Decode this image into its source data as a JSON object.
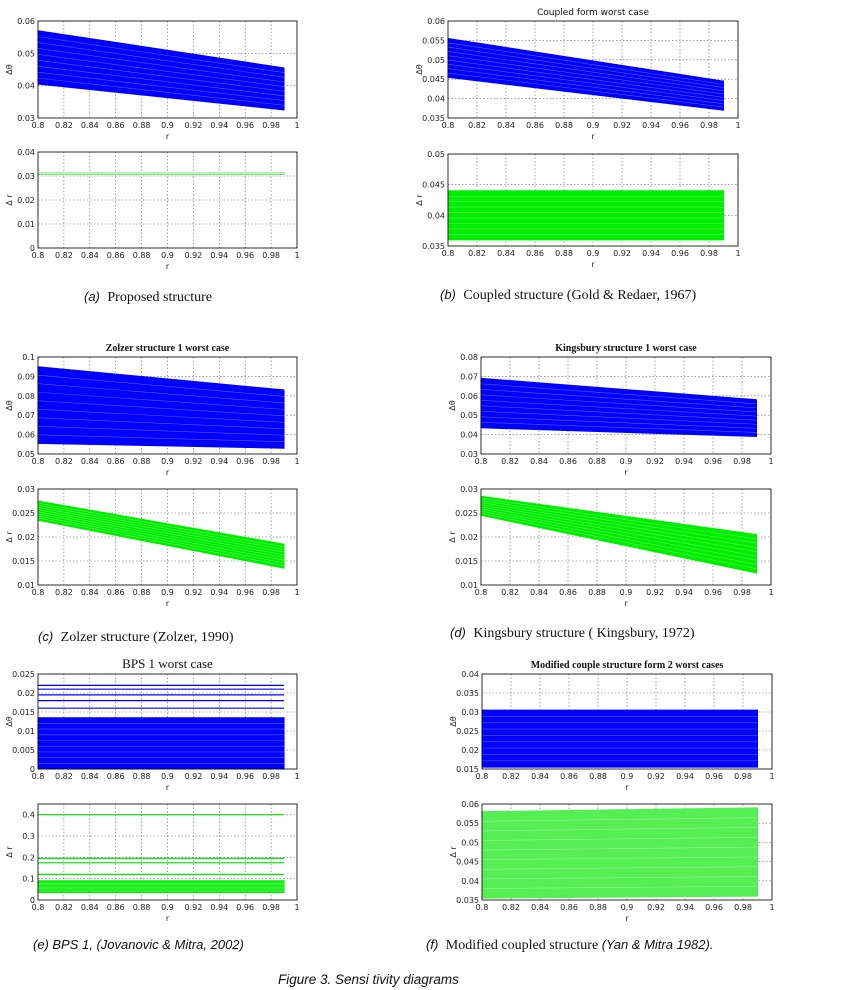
{
  "figure_caption": "Figure 3. Sensi tivity diagrams",
  "captions": {
    "a": {
      "tag": "(a)",
      "text": "Proposed structure"
    },
    "b": {
      "tag": "(b)",
      "text": "Coupled structure (Gold & Redaer, 1967)"
    },
    "c": {
      "tag": "(c)",
      "text": "Zolzer structure (Zolzer, 1990)"
    },
    "d": {
      "tag": "(d)",
      "text": "Kingsbury structure ( Kingsbury, 1972)"
    },
    "e": {
      "tag": "(e)",
      "text": "BPS 1, (Jovanovic & Mitra, 2002)"
    },
    "f": {
      "tag": "(f)",
      "text": "Modified coupled structure",
      "cite": "(Yan & Mitra 1982)."
    }
  },
  "chart_data": [
    {
      "id": "a-top",
      "type": "area",
      "title": "",
      "xlabel": "r",
      "ylabel": "Δθ",
      "xlim": [
        0.8,
        1
      ],
      "ylim": [
        0.03,
        0.06
      ],
      "xticks": [
        "0.8",
        "0.82",
        "0.84",
        "0.86",
        "0.88",
        "0.9",
        "0.92",
        "0.94",
        "0.96",
        "0.98",
        "1"
      ],
      "yticks": [
        "0.03",
        "0.04",
        "0.05",
        "0.06"
      ],
      "x_range": [
        0.8,
        0.99
      ],
      "upper": [
        0.057,
        0.0455
      ],
      "lower": [
        0.0405,
        0.0325
      ],
      "color": "#0000ff"
    },
    {
      "id": "a-bottom",
      "type": "line",
      "title": "",
      "xlabel": "r",
      "ylabel": "Δ r",
      "xlim": [
        0.8,
        1
      ],
      "ylim": [
        0,
        0.04
      ],
      "xticks": [
        "0.8",
        "0.82",
        "0.84",
        "0.86",
        "0.88",
        "0.9",
        "0.92",
        "0.94",
        "0.96",
        "0.98",
        "1"
      ],
      "yticks": [
        "0",
        "0.01",
        "0.02",
        "0.03",
        "0.04"
      ],
      "x_range": [
        0.8,
        0.99
      ],
      "upper": [
        0.0312,
        0.0312
      ],
      "lower": [
        0.0308,
        0.0308
      ],
      "color": "#00cc00"
    },
    {
      "id": "b-top",
      "type": "area",
      "title": "Coupled form worst case",
      "xlabel": "r",
      "ylabel": "Δθ",
      "xlim": [
        0.8,
        1
      ],
      "ylim": [
        0.035,
        0.06
      ],
      "xticks": [
        "0.8",
        "0.82",
        "0.84",
        "0.86",
        "0.88",
        "0.9",
        "0.92",
        "0.94",
        "0.96",
        "0.98",
        "1"
      ],
      "yticks": [
        "0.035",
        "0.04",
        "0.045",
        "0.05",
        "0.055",
        "0.06"
      ],
      "x_range": [
        0.8,
        0.99
      ],
      "upper": [
        0.0555,
        0.0445
      ],
      "lower": [
        0.0455,
        0.037
      ],
      "color": "#0000ff"
    },
    {
      "id": "b-bottom",
      "type": "area",
      "title": "",
      "xlabel": "r",
      "ylabel": "Δ r",
      "xlim": [
        0.8,
        1
      ],
      "ylim": [
        0.035,
        0.05
      ],
      "xticks": [
        "0.8",
        "0.82",
        "0.84",
        "0.86",
        "0.88",
        "0.9",
        "0.92",
        "0.94",
        "0.96",
        "0.98",
        "1"
      ],
      "yticks": [
        "0.035",
        "0.04",
        "0.045",
        "0.05"
      ],
      "x_range": [
        0.8,
        0.99
      ],
      "upper": [
        0.044,
        0.044
      ],
      "lower": [
        0.036,
        0.036
      ],
      "color": "#00ee00"
    },
    {
      "id": "c-top",
      "type": "area",
      "title": "Zolzer structure 1 worst case",
      "xlabel": "r",
      "ylabel": "Δθ",
      "xlim": [
        0.8,
        1
      ],
      "ylim": [
        0.05,
        0.1
      ],
      "xticks": [
        "0.8",
        "0.82",
        "0.84",
        "0.86",
        "0.88",
        "0.9",
        "0.92",
        "0.94",
        "0.96",
        "0.98",
        "1"
      ],
      "yticks": [
        "0.05",
        "0.06",
        "0.07",
        "0.08",
        "0.09",
        "0.1"
      ],
      "x_range": [
        0.8,
        0.99
      ],
      "upper": [
        0.095,
        0.083
      ],
      "lower": [
        0.0555,
        0.053
      ],
      "color": "#0000ff"
    },
    {
      "id": "c-bottom",
      "type": "area",
      "title": "",
      "xlabel": "r",
      "ylabel": "Δ r",
      "xlim": [
        0.8,
        1
      ],
      "ylim": [
        0.01,
        0.03
      ],
      "xticks": [
        "0.8",
        "0.82",
        "0.84",
        "0.86",
        "0.88",
        "0.9",
        "0.92",
        "0.94",
        "0.96",
        "0.98",
        "1"
      ],
      "yticks": [
        "0.01",
        "0.015",
        "0.02",
        "0.025",
        "0.03"
      ],
      "x_range": [
        0.8,
        0.99
      ],
      "upper": [
        0.0275,
        0.0185
      ],
      "lower": [
        0.0235,
        0.0135
      ],
      "color": "#00ee00"
    },
    {
      "id": "d-top",
      "type": "area",
      "title": "Kingsbury structure 1 worst case",
      "xlabel": "r",
      "ylabel": "Δθ",
      "xlim": [
        0.8,
        1
      ],
      "ylim": [
        0.03,
        0.08
      ],
      "xticks": [
        "0.8",
        "0.82",
        "0.84",
        "0.86",
        "0.88",
        "0.9",
        "0.92",
        "0.94",
        "0.96",
        "0.98",
        "1"
      ],
      "yticks": [
        "0.03",
        "0.04",
        "0.05",
        "0.06",
        "0.07",
        "0.08"
      ],
      "x_range": [
        0.8,
        0.99
      ],
      "upper": [
        0.069,
        0.058
      ],
      "lower": [
        0.0435,
        0.039
      ],
      "color": "#0000ff"
    },
    {
      "id": "d-bottom",
      "type": "area",
      "title": "",
      "xlabel": "r",
      "ylabel": "Δ r",
      "xlim": [
        0.8,
        1
      ],
      "ylim": [
        0.01,
        0.03
      ],
      "xticks": [
        "0.8",
        "0.82",
        "0.84",
        "0.86",
        "0.88",
        "0.9",
        "0.92",
        "0.94",
        "0.96",
        "0.98",
        "1"
      ],
      "yticks": [
        "0.01",
        "0.015",
        "0.02",
        "0.025",
        "0.03"
      ],
      "x_range": [
        0.8,
        0.99
      ],
      "upper": [
        0.0285,
        0.0205
      ],
      "lower": [
        0.0245,
        0.0125
      ],
      "color": "#00ee00"
    },
    {
      "id": "e-top",
      "type": "area",
      "title": "BPS 1 worst case",
      "xlabel": "r",
      "ylabel": "Δθ",
      "xlim": [
        0.8,
        1
      ],
      "ylim": [
        0,
        0.025
      ],
      "xticks": [
        "0.8",
        "0.82",
        "0.84",
        "0.86",
        "0.88",
        "0.9",
        "0.92",
        "0.94",
        "0.96",
        "0.98",
        "1"
      ],
      "yticks": [
        "0",
        "0.005",
        "0.01",
        "0.015",
        "0.02",
        "0.025"
      ],
      "x_range": [
        0.8,
        0.99
      ],
      "upper": [
        0.0135,
        0.0135
      ],
      "lower": [
        0.0,
        0.0
      ],
      "color": "#0000ff",
      "extra_lines": [
        0.016,
        0.018,
        0.0195,
        0.021,
        0.022
      ]
    },
    {
      "id": "e-bottom",
      "type": "area",
      "title": "",
      "xlabel": "r",
      "ylabel": "Δ r",
      "xlim": [
        0.8,
        1
      ],
      "ylim": [
        0,
        0.45
      ],
      "xticks": [
        "0.8",
        "0.82",
        "0.84",
        "0.86",
        "0.88",
        "0.9",
        "0.92",
        "0.94",
        "0.96",
        "0.98",
        "1"
      ],
      "yticks": [
        "0",
        "0.1",
        "0.2",
        "0.3",
        "0.4"
      ],
      "x_range": [
        0.8,
        0.99
      ],
      "upper": [
        0.09,
        0.09
      ],
      "lower": [
        0.035,
        0.035
      ],
      "color": "#00ee00",
      "extra_lines": [
        0.4,
        0.195,
        0.175,
        0.12
      ]
    },
    {
      "id": "f-top",
      "type": "area",
      "title": "Modified couple structure form 2 worst cases",
      "xlabel": "r",
      "ylabel": "Δθ",
      "xlim": [
        0.8,
        1
      ],
      "ylim": [
        0.015,
        0.04
      ],
      "xticks": [
        "0.8",
        "0.82",
        "0.84",
        "0.86",
        "0.88",
        "0.9",
        "0.92",
        "0.94",
        "0.96",
        "0.98",
        "1"
      ],
      "yticks": [
        "0.015",
        "0.02",
        "0.025",
        "0.03",
        "0.035",
        "0.04"
      ],
      "x_range": [
        0.8,
        0.99
      ],
      "upper": [
        0.0305,
        0.0305
      ],
      "lower": [
        0.0155,
        0.0155
      ],
      "color": "#0000ff"
    },
    {
      "id": "f-bottom",
      "type": "area",
      "title": "",
      "xlabel": "r",
      "ylabel": "Δ r",
      "xlim": [
        0.8,
        1
      ],
      "ylim": [
        0.035,
        0.06
      ],
      "xticks": [
        "0.8",
        "0.82",
        "0.84",
        "0.86",
        "0.88",
        "0.9",
        "0.92",
        "0.94",
        "0.96",
        "0.98",
        "1"
      ],
      "yticks": [
        "0.035",
        "0.04",
        "0.045",
        "0.05",
        "0.055",
        "0.06"
      ],
      "x_range": [
        0.8,
        0.99
      ],
      "upper": [
        0.058,
        0.059
      ],
      "lower": [
        0.0355,
        0.036
      ],
      "color": "#55ee55"
    }
  ]
}
